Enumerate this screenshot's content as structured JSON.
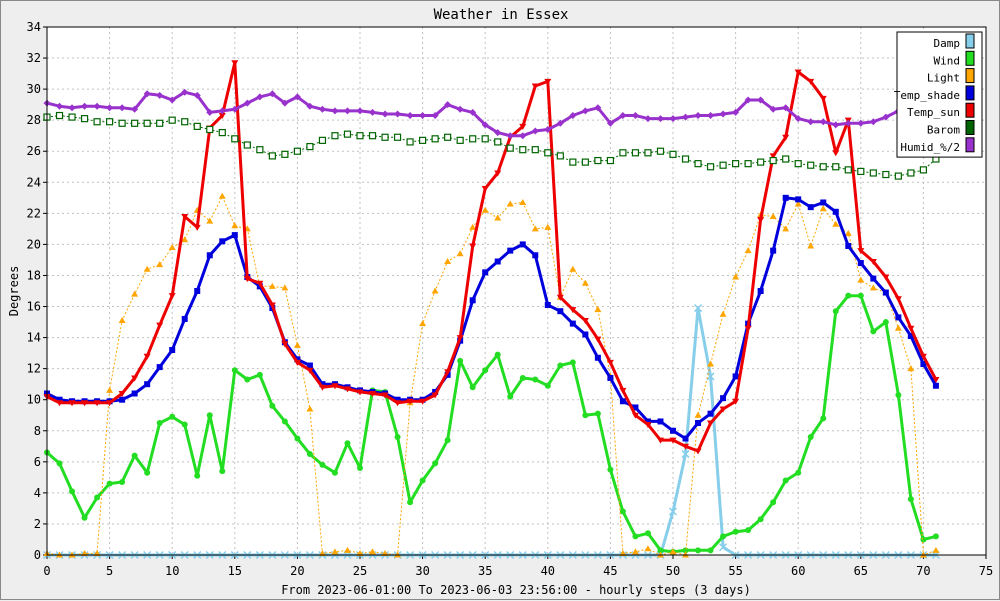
{
  "chart_data": {
    "type": "line",
    "title": "Weather in Essex",
    "xlabel": "From 2023-06-01:00 To 2023-06-03 23:56:00 - hourly steps (3 days)",
    "ylabel": "Degrees",
    "xlim": [
      0,
      75
    ],
    "ylim": [
      0,
      34
    ],
    "xticks": [
      0,
      5,
      10,
      15,
      20,
      25,
      30,
      35,
      40,
      45,
      50,
      55,
      60,
      65,
      70,
      75
    ],
    "yticks": [
      0,
      2,
      4,
      6,
      8,
      10,
      12,
      14,
      16,
      18,
      20,
      22,
      24,
      26,
      28,
      30,
      32,
      34
    ],
    "grid": true,
    "legend_position": "top-right",
    "series": [
      {
        "name": "Damp",
        "color": "#87ceeb",
        "marker": "x",
        "style": "solid",
        "width": 3,
        "x": [
          0,
          1,
          2,
          3,
          4,
          5,
          6,
          7,
          8,
          9,
          10,
          11,
          12,
          13,
          14,
          15,
          16,
          17,
          18,
          19,
          20,
          21,
          22,
          23,
          24,
          25,
          26,
          27,
          28,
          29,
          30,
          31,
          32,
          33,
          34,
          35,
          36,
          37,
          38,
          39,
          40,
          41,
          42,
          43,
          44,
          45,
          46,
          47,
          48,
          49,
          50,
          51,
          52,
          53,
          54,
          55,
          56,
          57,
          58,
          59,
          60,
          61,
          62,
          63,
          64,
          65,
          66,
          67,
          68,
          69,
          70,
          71
        ],
        "y": [
          0,
          0,
          0,
          0,
          0,
          0,
          0,
          0,
          0,
          0,
          0,
          0,
          0,
          0,
          0,
          0,
          0,
          0,
          0,
          0,
          0,
          0,
          0,
          0,
          0,
          0,
          0,
          0,
          0,
          0,
          0,
          0,
          0,
          0,
          0,
          0,
          0,
          0,
          0,
          0,
          0,
          0,
          0,
          0,
          0,
          0,
          0,
          0,
          0,
          0,
          2.8,
          6.5,
          15.9,
          11.5,
          0.5,
          0,
          0,
          0,
          0,
          0,
          0,
          0,
          0,
          0,
          0,
          0,
          0,
          0,
          0,
          0,
          0,
          0
        ]
      },
      {
        "name": "Wind",
        "color": "#22dd22",
        "marker": "circle",
        "style": "solid",
        "width": 3,
        "x": [
          0,
          1,
          2,
          3,
          4,
          5,
          6,
          7,
          8,
          9,
          10,
          11,
          12,
          13,
          14,
          15,
          16,
          17,
          18,
          19,
          20,
          21,
          22,
          23,
          24,
          25,
          26,
          27,
          28,
          29,
          30,
          31,
          32,
          33,
          34,
          35,
          36,
          37,
          38,
          39,
          40,
          41,
          42,
          43,
          44,
          45,
          46,
          47,
          48,
          49,
          50,
          51,
          52,
          53,
          54,
          55,
          56,
          57,
          58,
          59,
          60,
          61,
          62,
          63,
          64,
          65,
          66,
          67,
          68,
          69,
          70,
          71
        ],
        "y": [
          6.6,
          5.9,
          4.1,
          2.4,
          3.7,
          4.6,
          4.7,
          6.4,
          5.3,
          8.5,
          8.9,
          8.4,
          5.1,
          9.0,
          5.4,
          11.9,
          11.3,
          11.6,
          9.6,
          8.6,
          7.5,
          6.5,
          5.8,
          5.3,
          7.2,
          5.6,
          10.6,
          10.5,
          7.6,
          3.4,
          4.8,
          5.9,
          7.4,
          12.5,
          10.8,
          11.9,
          12.9,
          10.2,
          11.4,
          11.3,
          10.9,
          12.2,
          12.4,
          9.0,
          9.1,
          5.5,
          2.8,
          1.2,
          1.4,
          0.3,
          0.2,
          0.3,
          0.3,
          0.3,
          1.2,
          1.5,
          1.6,
          2.3,
          3.4,
          4.8,
          5.3,
          7.6,
          8.8,
          15.7,
          16.7,
          16.7,
          14.4,
          15.0,
          10.3,
          3.6,
          1.0,
          1.2
        ]
      },
      {
        "name": "Light",
        "color": "#ffa500",
        "marker": "triangle-up",
        "style": "dotted",
        "width": 1,
        "x": [
          0,
          1,
          2,
          3,
          4,
          5,
          6,
          7,
          8,
          9,
          10,
          11,
          12,
          13,
          14,
          15,
          16,
          17,
          18,
          19,
          20,
          21,
          22,
          23,
          24,
          25,
          26,
          27,
          28,
          29,
          30,
          31,
          32,
          33,
          34,
          35,
          36,
          37,
          38,
          39,
          40,
          41,
          42,
          43,
          44,
          45,
          46,
          47,
          48,
          49,
          50,
          51,
          52,
          53,
          54,
          55,
          56,
          57,
          58,
          59,
          60,
          61,
          62,
          63,
          64,
          65,
          66,
          67,
          68,
          69,
          70,
          71
        ],
        "y": [
          0.1,
          0.0,
          0.0,
          0.1,
          0.1,
          10.6,
          15.1,
          16.8,
          18.4,
          18.7,
          19.8,
          20.3,
          22.2,
          21.5,
          23.1,
          21.2,
          21.0,
          17.3,
          17.3,
          17.2,
          13.5,
          9.4,
          0.1,
          0.2,
          0.3,
          0.1,
          0.2,
          0.1,
          0.0,
          9.8,
          14.9,
          17.0,
          18.9,
          19.4,
          21.1,
          22.2,
          21.7,
          22.6,
          22.7,
          21.0,
          21.1,
          16.6,
          18.4,
          17.5,
          15.8,
          11.5,
          0.1,
          0.2,
          0.4,
          0.0,
          0.2,
          0.0,
          9.0,
          12.3,
          15.5,
          17.9,
          19.6,
          21.9,
          21.8,
          21.0,
          22.6,
          19.9,
          22.3,
          21.3,
          20.7,
          17.7,
          17.2,
          16.9,
          14.6,
          12.0,
          0.0,
          0.3
        ]
      },
      {
        "name": "Temp_shade",
        "color": "#0000dd",
        "marker": "square",
        "style": "solid",
        "width": 3,
        "x": [
          0,
          1,
          2,
          3,
          4,
          5,
          6,
          7,
          8,
          9,
          10,
          11,
          12,
          13,
          14,
          15,
          16,
          17,
          18,
          19,
          20,
          21,
          22,
          23,
          24,
          25,
          26,
          27,
          28,
          29,
          30,
          31,
          32,
          33,
          34,
          35,
          36,
          37,
          38,
          39,
          40,
          41,
          42,
          43,
          44,
          45,
          46,
          47,
          48,
          49,
          50,
          51,
          52,
          53,
          54,
          55,
          56,
          57,
          58,
          59,
          60,
          61,
          62,
          63,
          64,
          65,
          66,
          67,
          68,
          69,
          70,
          71
        ],
        "y": [
          10.4,
          10.0,
          9.9,
          9.9,
          9.9,
          9.9,
          10.0,
          10.4,
          11.0,
          12.1,
          13.2,
          15.2,
          17.0,
          19.3,
          20.2,
          20.6,
          17.9,
          17.3,
          15.9,
          13.7,
          12.6,
          12.2,
          11.0,
          11.0,
          10.8,
          10.6,
          10.5,
          10.4,
          10.0,
          10.0,
          10.0,
          10.5,
          11.6,
          13.8,
          16.4,
          18.2,
          18.9,
          19.6,
          20.0,
          19.3,
          16.1,
          15.7,
          14.9,
          14.2,
          12.7,
          11.4,
          9.9,
          9.5,
          8.6,
          8.6,
          8.0,
          7.5,
          8.5,
          9.1,
          10.1,
          11.5,
          14.9,
          17.0,
          19.6,
          23.0,
          22.9,
          22.4,
          22.7,
          22.1,
          19.9,
          18.8,
          17.8,
          16.9,
          15.3,
          14.1,
          12.3,
          10.9
        ]
      },
      {
        "name": "Temp_sun",
        "color": "#ee0000",
        "marker": "triangle-down",
        "style": "solid",
        "width": 3,
        "x": [
          0,
          1,
          2,
          3,
          4,
          5,
          6,
          7,
          8,
          9,
          10,
          11,
          12,
          13,
          14,
          15,
          16,
          17,
          18,
          19,
          20,
          21,
          22,
          23,
          24,
          25,
          26,
          27,
          28,
          29,
          30,
          31,
          32,
          33,
          34,
          35,
          36,
          37,
          38,
          39,
          40,
          41,
          42,
          43,
          44,
          45,
          46,
          47,
          48,
          49,
          50,
          51,
          52,
          53,
          54,
          55,
          56,
          57,
          58,
          59,
          60,
          61,
          62,
          63,
          64,
          65,
          66,
          67,
          68,
          69,
          70,
          71
        ],
        "y": [
          10.2,
          9.8,
          9.8,
          9.8,
          9.8,
          9.8,
          10.4,
          11.4,
          12.8,
          14.8,
          16.7,
          21.8,
          21.1,
          27.5,
          28.3,
          31.7,
          17.8,
          17.5,
          16.1,
          13.6,
          12.4,
          11.9,
          10.8,
          10.9,
          10.7,
          10.5,
          10.4,
          10.3,
          9.8,
          9.9,
          9.9,
          10.3,
          11.8,
          14.0,
          19.9,
          23.6,
          24.6,
          26.9,
          27.6,
          30.2,
          30.5,
          16.6,
          15.8,
          15.1,
          13.9,
          12.4,
          10.6,
          9.0,
          8.4,
          7.4,
          7.4,
          7.0,
          6.7,
          8.5,
          9.4,
          9.9,
          14.6,
          21.6,
          25.7,
          26.9,
          31.1,
          30.5,
          29.4,
          25.9,
          28.0,
          19.6,
          18.9,
          17.9,
          16.5,
          14.6,
          12.8,
          11.3
        ]
      },
      {
        "name": "Barom",
        "color": "#006400",
        "marker": "square-open",
        "style": "dotted",
        "width": 1,
        "x": [
          0,
          1,
          2,
          3,
          4,
          5,
          6,
          7,
          8,
          9,
          10,
          11,
          12,
          13,
          14,
          15,
          16,
          17,
          18,
          19,
          20,
          21,
          22,
          23,
          24,
          25,
          26,
          27,
          28,
          29,
          30,
          31,
          32,
          33,
          34,
          35,
          36,
          37,
          38,
          39,
          40,
          41,
          42,
          43,
          44,
          45,
          46,
          47,
          48,
          49,
          50,
          51,
          52,
          53,
          54,
          55,
          56,
          57,
          58,
          59,
          60,
          61,
          62,
          63,
          64,
          65,
          66,
          67,
          68,
          69,
          70,
          71
        ],
        "y": [
          28.2,
          28.3,
          28.2,
          28.1,
          27.9,
          27.9,
          27.8,
          27.8,
          27.8,
          27.8,
          28.0,
          27.9,
          27.6,
          27.4,
          27.2,
          26.8,
          26.4,
          26.1,
          25.7,
          25.8,
          26.0,
          26.3,
          26.7,
          27.0,
          27.1,
          27.0,
          27.0,
          26.9,
          26.9,
          26.6,
          26.7,
          26.8,
          26.9,
          26.7,
          26.8,
          26.8,
          26.6,
          26.2,
          26.1,
          26.1,
          25.9,
          25.7,
          25.3,
          25.3,
          25.4,
          25.4,
          25.9,
          25.9,
          25.9,
          26.0,
          25.8,
          25.5,
          25.2,
          25.0,
          25.1,
          25.2,
          25.2,
          25.3,
          25.4,
          25.5,
          25.2,
          25.1,
          25.0,
          25.0,
          24.8,
          24.7,
          24.6,
          24.5,
          24.4,
          24.6,
          24.8,
          25.5
        ]
      },
      {
        "name": "Humid_%/2",
        "color": "#9932cc",
        "marker": "diamond",
        "style": "solid",
        "width": 3,
        "x": [
          0,
          1,
          2,
          3,
          4,
          5,
          6,
          7,
          8,
          9,
          10,
          11,
          12,
          13,
          14,
          15,
          16,
          17,
          18,
          19,
          20,
          21,
          22,
          23,
          24,
          25,
          26,
          27,
          28,
          29,
          30,
          31,
          32,
          33,
          34,
          35,
          36,
          37,
          38,
          39,
          40,
          41,
          42,
          43,
          44,
          45,
          46,
          47,
          48,
          49,
          50,
          51,
          52,
          53,
          54,
          55,
          56,
          57,
          58,
          59,
          60,
          61,
          62,
          63,
          64,
          65,
          66,
          67,
          68,
          69,
          70,
          71
        ],
        "y": [
          29.1,
          28.9,
          28.8,
          28.9,
          28.9,
          28.8,
          28.8,
          28.7,
          29.7,
          29.6,
          29.3,
          29.8,
          29.6,
          28.5,
          28.6,
          28.7,
          29.1,
          29.5,
          29.7,
          29.1,
          29.5,
          28.9,
          28.7,
          28.6,
          28.6,
          28.6,
          28.5,
          28.4,
          28.4,
          28.3,
          28.3,
          28.3,
          29.0,
          28.7,
          28.5,
          27.7,
          27.2,
          27.0,
          27.0,
          27.3,
          27.4,
          27.8,
          28.3,
          28.6,
          28.8,
          27.8,
          28.3,
          28.3,
          28.1,
          28.1,
          28.1,
          28.2,
          28.3,
          28.3,
          28.4,
          28.5,
          29.3,
          29.3,
          28.7,
          28.8,
          28.1,
          27.9,
          27.9,
          27.7,
          27.8,
          27.8,
          27.9,
          28.2,
          28.6,
          28.4,
          28.2,
          28.1
        ]
      }
    ]
  }
}
